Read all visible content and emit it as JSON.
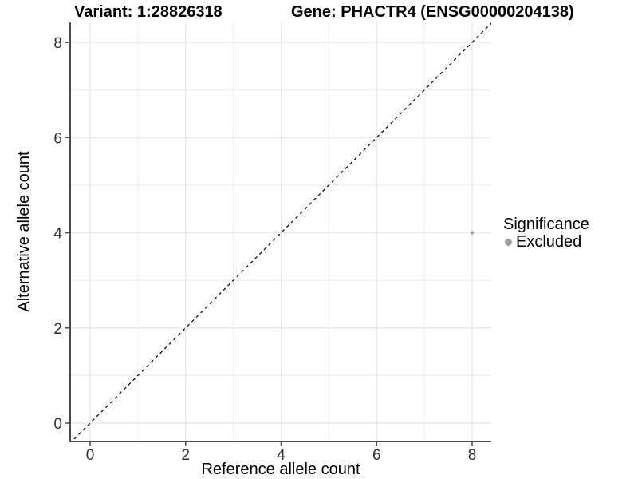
{
  "chart_data": {
    "type": "scatter",
    "titles": {
      "left": "Variant: 1:28826318",
      "right": "Gene: PHACTR4 (ENSG00000204138)"
    },
    "xlabel": "Reference allele count",
    "ylabel": "Alternative allele count",
    "x_ticks": [
      0,
      2,
      4,
      6,
      8
    ],
    "y_ticks": [
      0,
      2,
      4,
      6,
      8
    ],
    "xlim": [
      -0.42,
      8.42
    ],
    "ylim": [
      -0.39,
      8.42
    ],
    "grid": {
      "from": 0,
      "to": 8,
      "every": 1
    },
    "reference_line": {
      "type": "identity",
      "slope": 1,
      "intercept": 0,
      "style": "dashed",
      "color": "#000000"
    },
    "series": [
      {
        "name": "Excluded",
        "color": "#a6a6a6",
        "point_radius": 2.2,
        "points": [
          {
            "x": 8,
            "y": 4
          }
        ]
      }
    ],
    "legend": {
      "title": "Significance",
      "position": "right",
      "items": [
        {
          "label": "Excluded",
          "color": "#9e9e9e"
        }
      ]
    },
    "colors": {
      "background": "#ffffff",
      "grid_major": "#e4e4e4",
      "grid_minor": "#ececec",
      "axis_line": "#4d4d4d",
      "tick_text": "#333333"
    }
  }
}
